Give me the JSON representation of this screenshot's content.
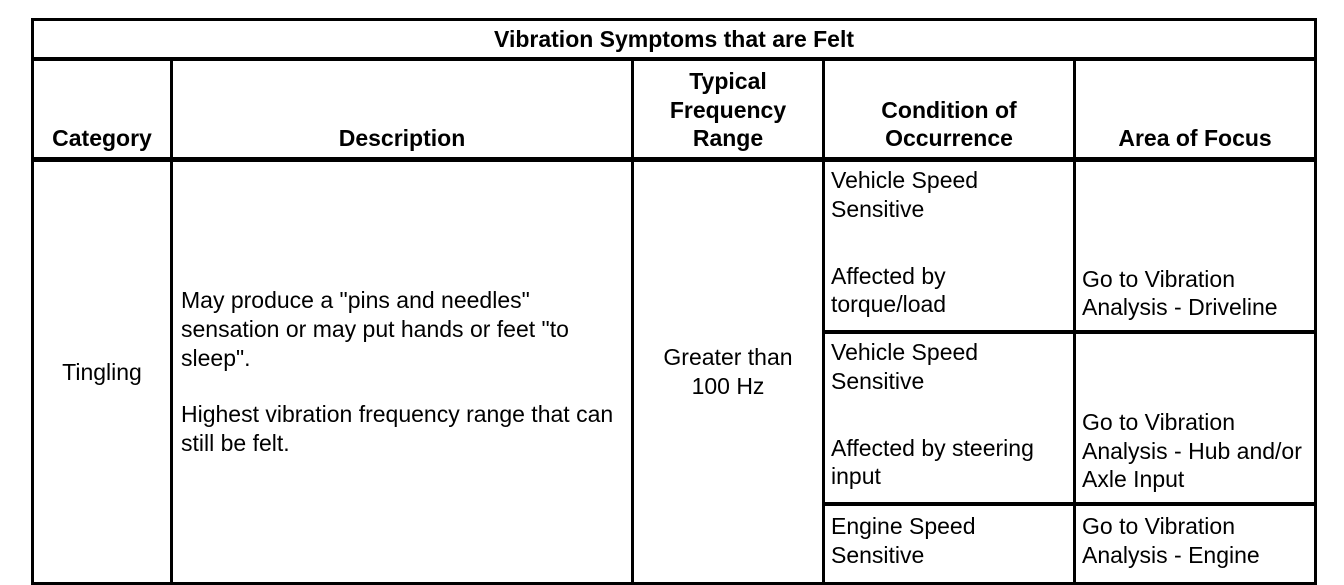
{
  "table": {
    "title": "Vibration Symptoms that are Felt",
    "headers": {
      "category": "Category",
      "description": "Description",
      "frequency": "Typical Frequency Range",
      "condition": "Condition of Occurrence",
      "focus": "Area of Focus"
    },
    "category": "Tingling",
    "description": [
      "May produce a \"pins and needles\" sensation or may put hands or feet \"to sleep\".",
      "Highest vibration frequency range that can still be felt."
    ],
    "frequency": "Greater than 100 Hz",
    "rows": [
      {
        "condition_1": "Vehicle Speed Sensitive",
        "condition_2": "Affected by torque/load",
        "focus": "Go to Vibration Analysis - Driveline"
      },
      {
        "condition_1": "Vehicle Speed Sensitive",
        "condition_2": "Affected by steering input",
        "focus": "Go to Vibration Analysis - Hub and/or Axle Input"
      },
      {
        "condition_1": "Engine Speed Sensitive",
        "condition_2": "",
        "focus": "Go to Vibration Analysis - Engine"
      }
    ]
  }
}
